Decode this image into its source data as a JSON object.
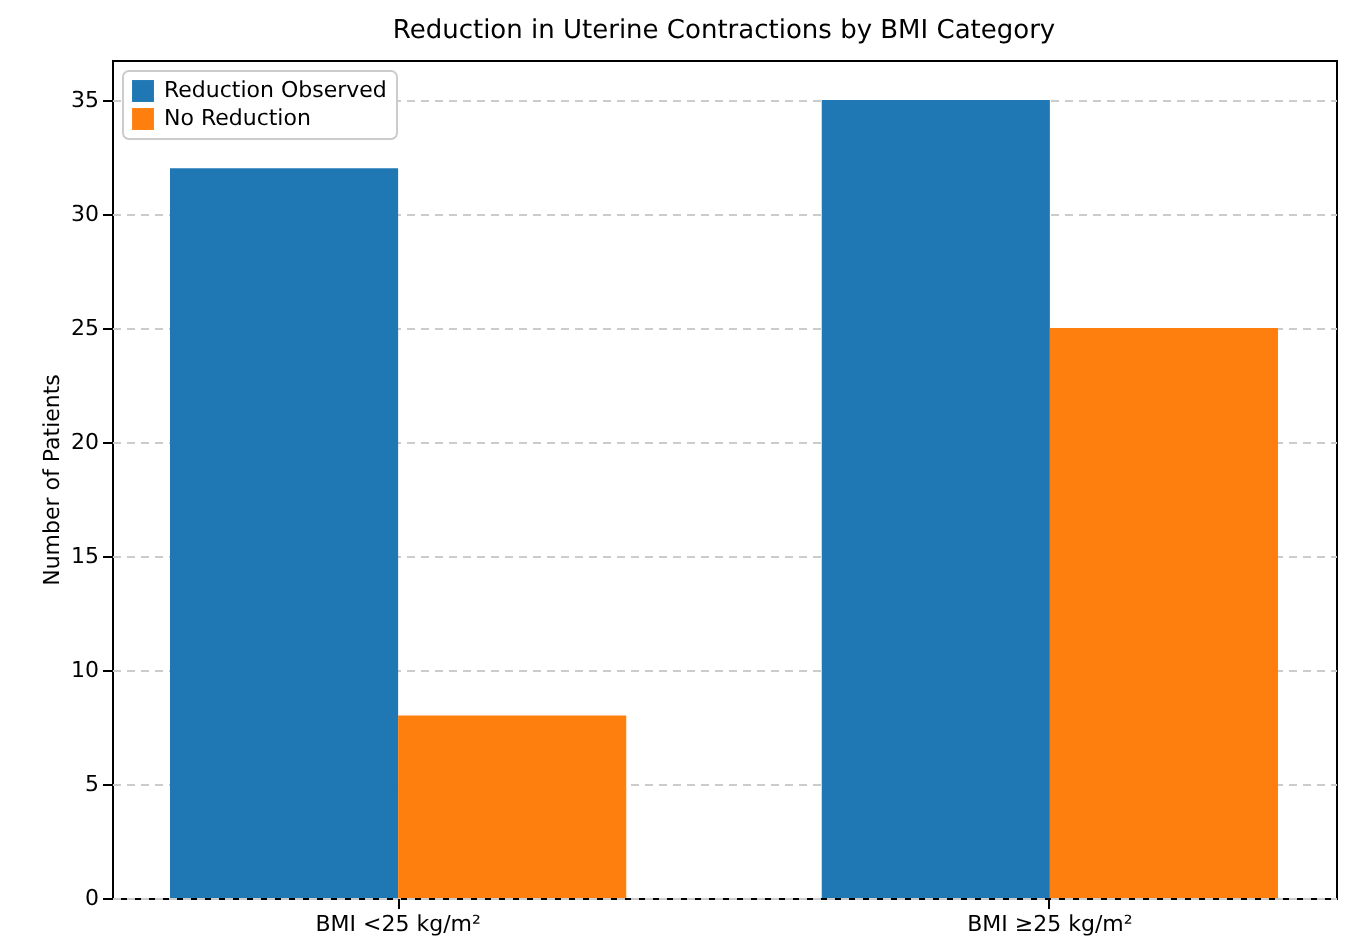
{
  "chart_data": {
    "type": "bar",
    "title": "Reduction in Uterine Contractions by BMI Category",
    "ylabel": "Number of Patients",
    "categories": [
      "BMI <25 kg/m²",
      "BMI ≥25 kg/m²"
    ],
    "series": [
      {
        "name": "Reduction Observed",
        "color": "#1f77b4",
        "values": [
          32,
          35
        ]
      },
      {
        "name": "No Reduction",
        "color": "#ff7f0e",
        "values": [
          8,
          25
        ]
      }
    ],
    "ylim": [
      0,
      36.75
    ],
    "yticks": [
      0,
      5,
      10,
      15,
      20,
      25,
      30,
      35
    ],
    "grid": "y",
    "legend": "top left"
  }
}
